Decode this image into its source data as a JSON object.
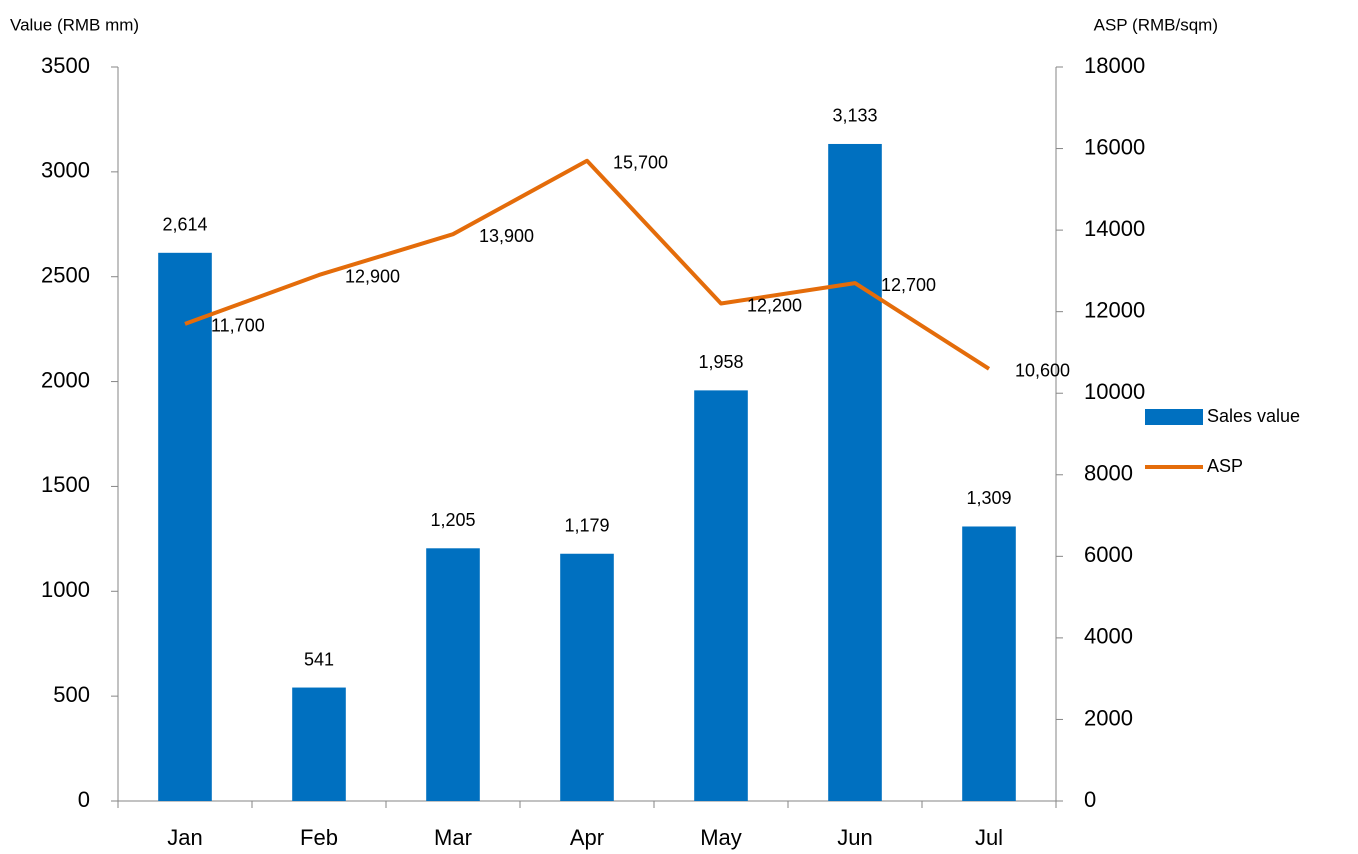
{
  "chart_data": {
    "type": "bar",
    "y_label": "Value (RMB mm)",
    "y2_label": "ASP (RMB/sqm)",
    "categories": [
      "Jan",
      "Feb",
      "Mar",
      "Apr",
      "May",
      "Jun",
      "Jul"
    ],
    "series": [
      {
        "name": "Sales value",
        "type": "bar",
        "color": "#0070c0",
        "values": [
          2614,
          541,
          1205,
          1179,
          1958,
          3133,
          1309
        ],
        "value_labels": [
          "2,614",
          "541",
          "1,205",
          "1,179",
          "1,958",
          "3,133",
          "1,309"
        ]
      },
      {
        "name": "ASP",
        "type": "line",
        "axis": "y2",
        "color": "#e46c0a",
        "values": [
          11700,
          12900,
          13900,
          15700,
          12200,
          12700,
          10600
        ],
        "value_labels": [
          "11,700",
          "12,900",
          "13,900",
          "15,700",
          "12,200",
          "12,700",
          "10,600"
        ]
      }
    ],
    "ylim": [
      0,
      3500
    ],
    "yticks": [
      0,
      500,
      1000,
      1500,
      2000,
      2500,
      3000,
      3500
    ],
    "y2lim": [
      0,
      18000
    ],
    "y2ticks": [
      0,
      2000,
      4000,
      6000,
      8000,
      10000,
      12000,
      14000,
      16000,
      18000
    ],
    "legend": "right"
  }
}
